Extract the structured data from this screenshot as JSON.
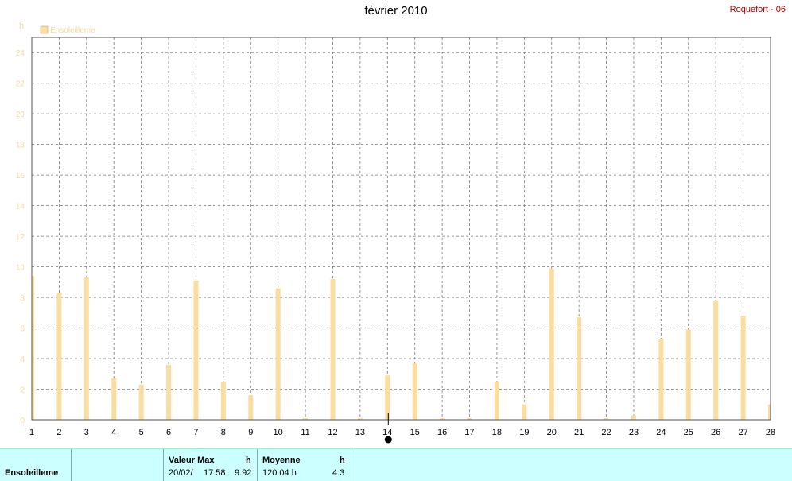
{
  "header": {
    "title": "février 2010",
    "station": "Roquefort - 06"
  },
  "chart_data": {
    "type": "bar",
    "title": "février 2010",
    "ylabel": "h",
    "ylim": [
      0,
      25
    ],
    "yticks": [
      0,
      2,
      4,
      6,
      8,
      10,
      12,
      14,
      16,
      18,
      20,
      22,
      24
    ],
    "grid": true,
    "legend": "top-left",
    "categories": [
      "1",
      "2",
      "3",
      "4",
      "5",
      "6",
      "7",
      "8",
      "9",
      "10",
      "11",
      "12",
      "13",
      "14",
      "15",
      "16",
      "17",
      "18",
      "19",
      "20",
      "21",
      "22",
      "23",
      "24",
      "25",
      "26",
      "27",
      "28"
    ],
    "series": [
      {
        "name": "Ensoleilleme",
        "color": "#fbdda0",
        "values": [
          9.4,
          8.3,
          9.3,
          2.7,
          2.3,
          3.6,
          9.1,
          2.5,
          1.6,
          8.6,
          0.1,
          9.2,
          0.1,
          2.9,
          3.7,
          0.1,
          0.1,
          2.5,
          1.0,
          9.9,
          6.7,
          0.1,
          0.3,
          5.3,
          5.9,
          7.8,
          6.8,
          1.0
        ]
      }
    ],
    "markers": {
      "x_marker_label": "14"
    }
  },
  "summary": {
    "series_label": "Ensoleilleme",
    "max_header": "Valeur Max",
    "max_unit": "h",
    "max_date": "20/02/",
    "max_time": "17:58",
    "max_value": "9.92",
    "avg_header": "Moyenne",
    "avg_unit": "h",
    "avg_total": "120:04 h",
    "avg_value": "4.3"
  }
}
